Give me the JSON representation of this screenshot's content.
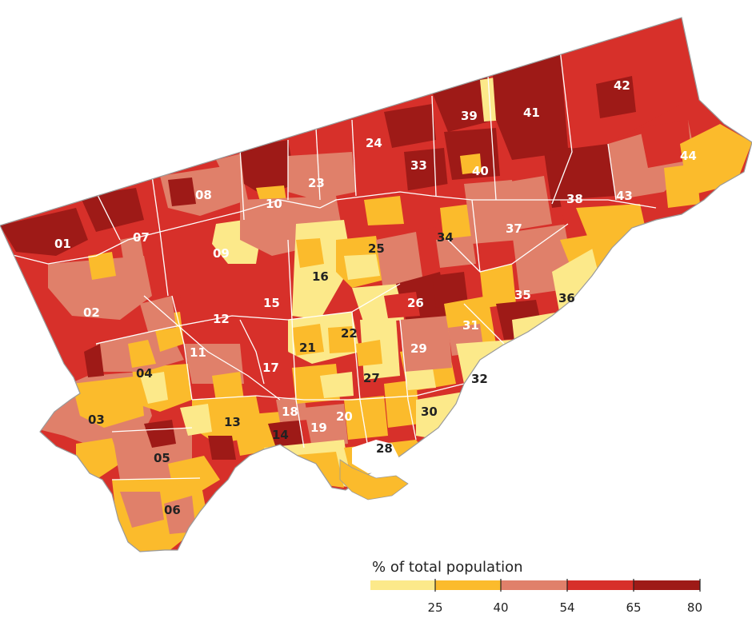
{
  "legend": {
    "title": "% of total population",
    "classes": [
      {
        "label": "",
        "color": "#fce98a"
      },
      {
        "label": "25",
        "color": "#fbbb2c"
      },
      {
        "label": "40",
        "color": "#e0806a"
      },
      {
        "label": "54",
        "color": "#d7302a"
      },
      {
        "label": "65",
        "color": "#9e1a17"
      },
      {
        "label": "80",
        "color": "#9e1a17"
      }
    ]
  },
  "wards": [
    {
      "id": "01",
      "label_color": "#ffffff"
    },
    {
      "id": "02",
      "label_color": "#ffffff"
    },
    {
      "id": "03",
      "label_color": "#222222"
    },
    {
      "id": "04",
      "label_color": "#222222"
    },
    {
      "id": "05",
      "label_color": "#222222"
    },
    {
      "id": "06",
      "label_color": "#222222"
    },
    {
      "id": "07",
      "label_color": "#ffffff"
    },
    {
      "id": "08",
      "label_color": "#ffffff"
    },
    {
      "id": "09",
      "label_color": "#ffffff"
    },
    {
      "id": "10",
      "label_color": "#ffffff"
    },
    {
      "id": "11",
      "label_color": "#ffffff"
    },
    {
      "id": "12",
      "label_color": "#ffffff"
    },
    {
      "id": "13",
      "label_color": "#222222"
    },
    {
      "id": "14",
      "label_color": "#222222"
    },
    {
      "id": "15",
      "label_color": "#ffffff"
    },
    {
      "id": "16",
      "label_color": "#222222"
    },
    {
      "id": "17",
      "label_color": "#ffffff"
    },
    {
      "id": "18",
      "label_color": "#ffffff"
    },
    {
      "id": "19",
      "label_color": "#ffffff"
    },
    {
      "id": "20",
      "label_color": "#ffffff"
    },
    {
      "id": "21",
      "label_color": "#222222"
    },
    {
      "id": "22",
      "label_color": "#222222"
    },
    {
      "id": "23",
      "label_color": "#ffffff"
    },
    {
      "id": "24",
      "label_color": "#ffffff"
    },
    {
      "id": "25",
      "label_color": "#222222"
    },
    {
      "id": "26",
      "label_color": "#ffffff"
    },
    {
      "id": "27",
      "label_color": "#222222"
    },
    {
      "id": "28",
      "label_color": "#222222"
    },
    {
      "id": "29",
      "label_color": "#ffffff"
    },
    {
      "id": "30",
      "label_color": "#222222"
    },
    {
      "id": "31",
      "label_color": "#ffffff"
    },
    {
      "id": "32",
      "label_color": "#222222"
    },
    {
      "id": "33",
      "label_color": "#ffffff"
    },
    {
      "id": "34",
      "label_color": "#222222"
    },
    {
      "id": "35",
      "label_color": "#ffffff"
    },
    {
      "id": "36",
      "label_color": "#222222"
    },
    {
      "id": "37",
      "label_color": "#ffffff"
    },
    {
      "id": "38",
      "label_color": "#ffffff"
    },
    {
      "id": "39",
      "label_color": "#ffffff"
    },
    {
      "id": "40",
      "label_color": "#ffffff"
    },
    {
      "id": "41",
      "label_color": "#ffffff"
    },
    {
      "id": "42",
      "label_color": "#ffffff"
    },
    {
      "id": "43",
      "label_color": "#ffffff"
    },
    {
      "id": "44",
      "label_color": "#ffffff"
    }
  ],
  "colors": {
    "c1": "#fce98a",
    "c2": "#fbbb2c",
    "c3": "#e0806a",
    "c4": "#d7302a",
    "c5": "#9e1a17",
    "boundary": "#ffffff",
    "outline": "#9a9a9a"
  }
}
